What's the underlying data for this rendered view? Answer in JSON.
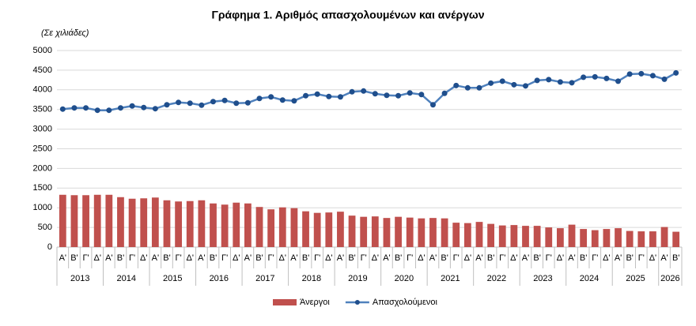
{
  "chart_data": {
    "type": "bar",
    "title": "Γράφημα 1. Αριθμός απασχολουμένων και ανέργων",
    "subtitle": "(Σε χιλιάδες)",
    "categories": [
      "Α'",
      "Β'",
      "Γ'",
      "Δ'",
      "Α'",
      "Β'",
      "Γ'",
      "Δ'",
      "Α'",
      "Β'",
      "Γ'",
      "Δ'",
      "Α'",
      "Β'",
      "Γ'",
      "Δ'",
      "Α'",
      "Β'",
      "Γ'",
      "Δ'",
      "Α'",
      "Β'",
      "Γ'",
      "Δ'",
      "Α'",
      "Β'",
      "Γ'",
      "Δ'",
      "Α'",
      "Β'",
      "Γ'",
      "Δ'",
      "Α'",
      "Β'",
      "Γ'",
      "Δ'",
      "Α'",
      "Β'",
      "Γ'",
      "Δ'",
      "Α'",
      "Β'",
      "Γ'",
      "Δ'",
      "Α'",
      "Β'",
      "Γ'",
      "Δ'",
      "Α'",
      "Β'",
      "Γ'",
      "Δ'",
      "Α'",
      "Β'"
    ],
    "years": [
      "2013",
      "2014",
      "2015",
      "2016",
      "2017",
      "2018",
      "2019",
      "2020",
      "2021",
      "2022",
      "2023",
      "2024",
      "2025",
      "2026"
    ],
    "series": [
      {
        "name": "Άνεργοι",
        "type": "bar",
        "color": "#c0504d",
        "values": [
          1330,
          1320,
          1320,
          1330,
          1330,
          1270,
          1230,
          1240,
          1260,
          1190,
          1160,
          1170,
          1190,
          1110,
          1080,
          1130,
          1110,
          1020,
          960,
          1010,
          990,
          910,
          870,
          880,
          900,
          800,
          770,
          780,
          740,
          770,
          750,
          730,
          740,
          730,
          620,
          610,
          640,
          590,
          550,
          560,
          540,
          540,
          500,
          480,
          570,
          460,
          430,
          460,
          480,
          410,
          400,
          400,
          510,
          390
        ]
      },
      {
        "name": "Απασχολούμενοι",
        "type": "line",
        "color": "#4f81bd",
        "values": [
          3510,
          3540,
          3540,
          3480,
          3480,
          3540,
          3590,
          3550,
          3520,
          3620,
          3680,
          3660,
          3610,
          3700,
          3730,
          3660,
          3670,
          3780,
          3820,
          3740,
          3720,
          3850,
          3890,
          3830,
          3820,
          3950,
          3970,
          3900,
          3860,
          3850,
          3920,
          3880,
          3620,
          3910,
          4110,
          4050,
          4050,
          4170,
          4220,
          4130,
          4100,
          4240,
          4260,
          4200,
          4180,
          4320,
          4330,
          4290,
          4220,
          4400,
          4410,
          4360,
          4270,
          4430
        ]
      }
    ],
    "ylim": [
      0,
      5000
    ],
    "yticks": [
      0,
      500,
      1000,
      1500,
      2000,
      2500,
      3000,
      3500,
      4000,
      4500,
      5000
    ],
    "grid": true
  }
}
